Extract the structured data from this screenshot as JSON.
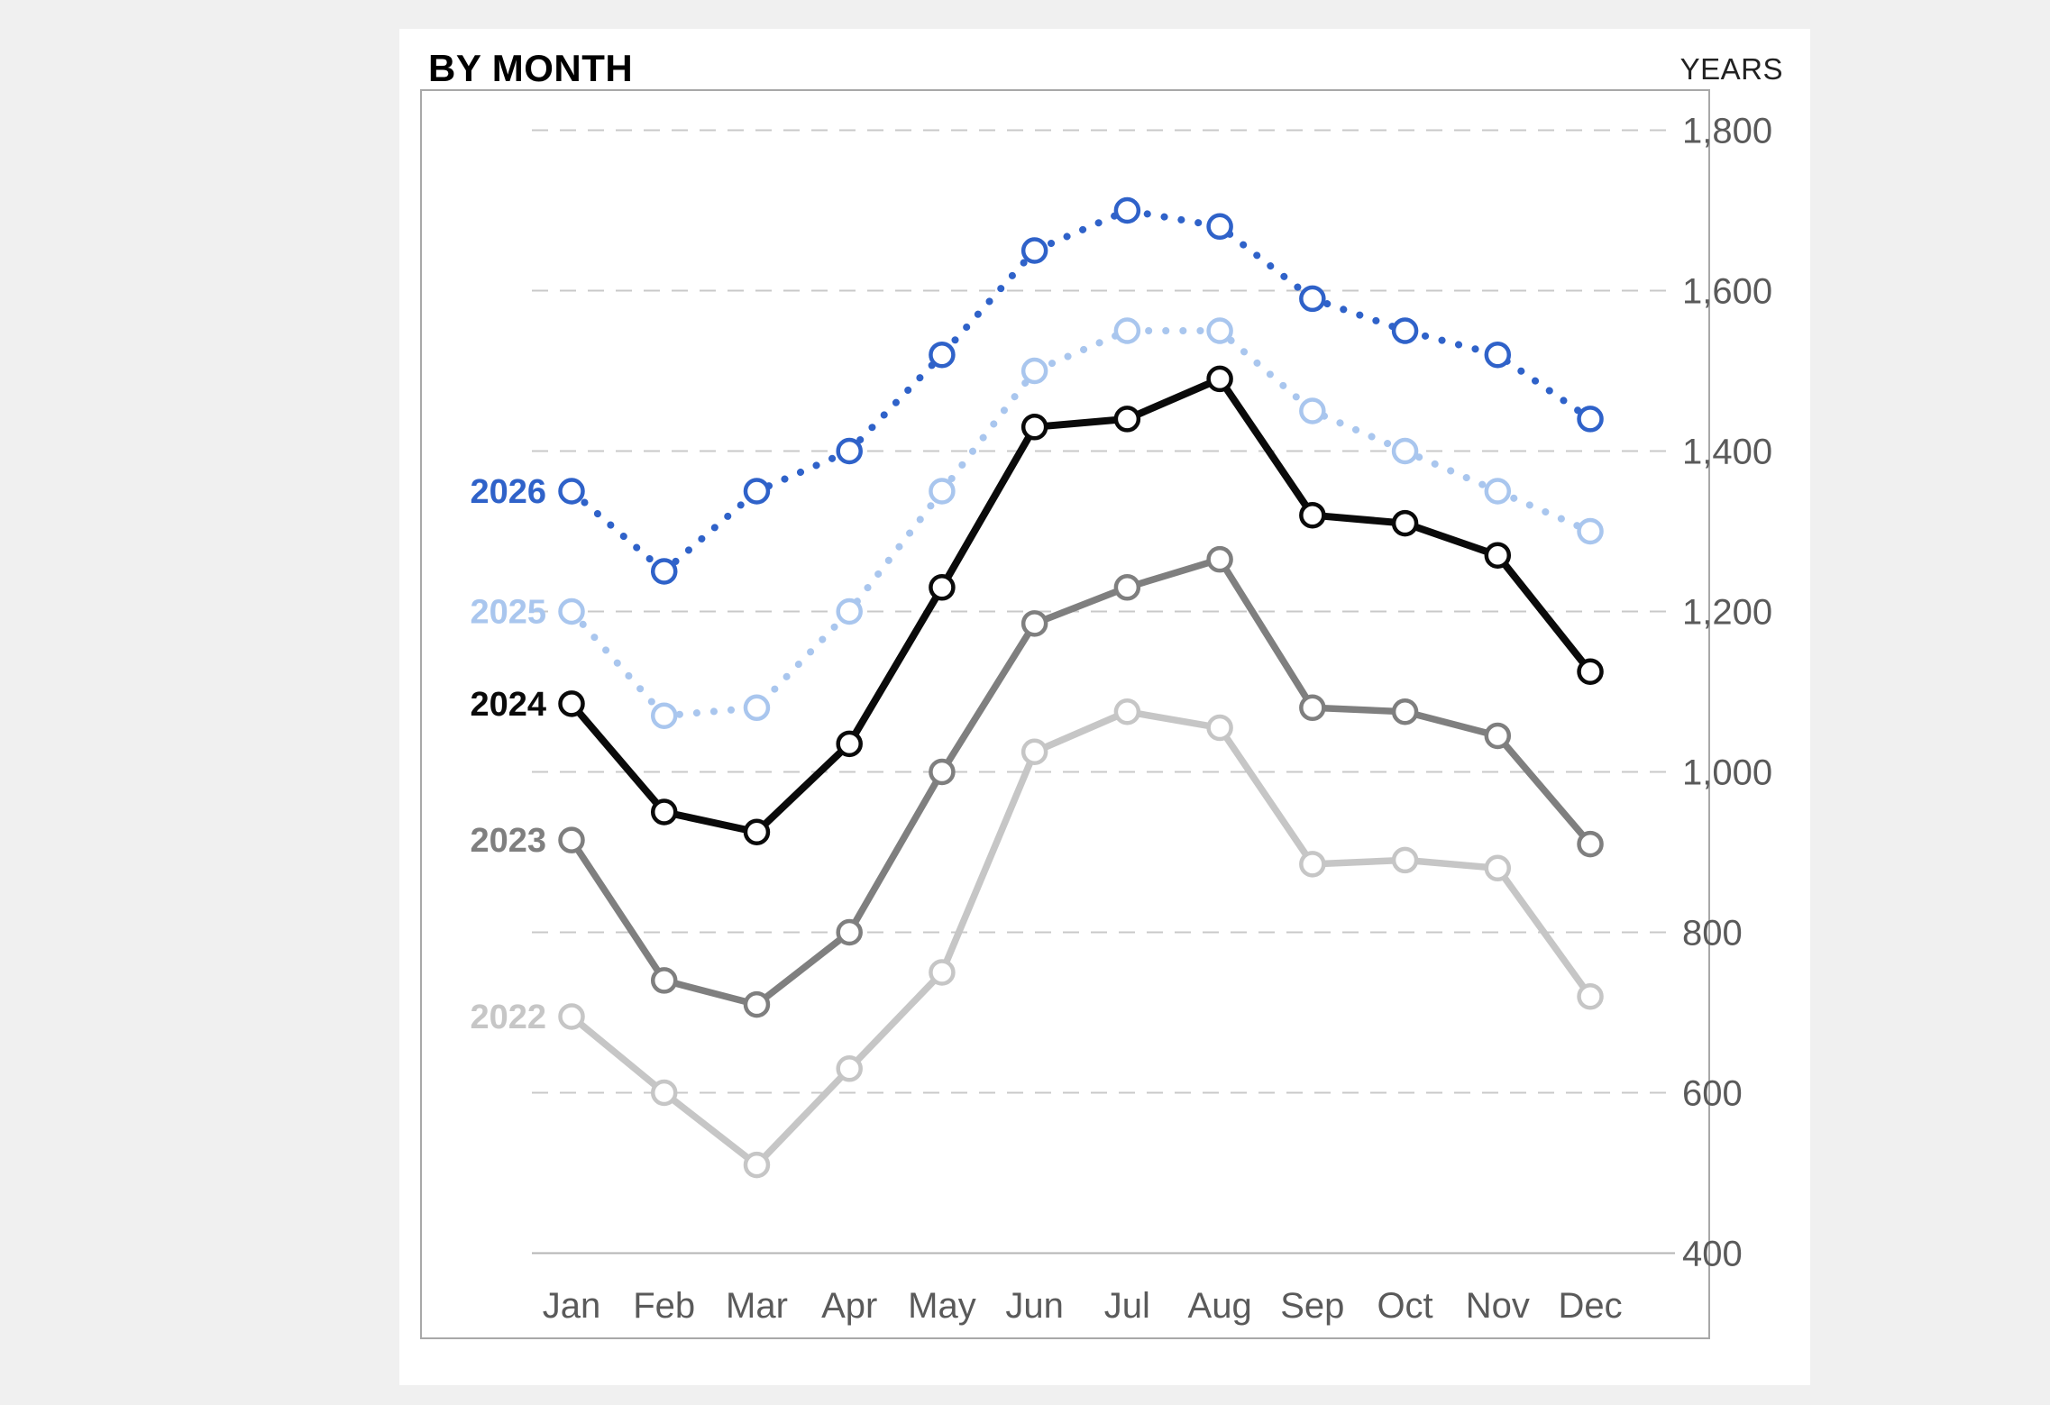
{
  "page": {
    "background": "#f0f0f0",
    "card_background": "#ffffff"
  },
  "header": {
    "title": "BY MONTH",
    "axis_unit_label": "YEARS"
  },
  "chart_data": {
    "type": "line",
    "title": "BY MONTH",
    "legend_position": "inline-left-of-first-point",
    "x_categories": [
      "Jan",
      "Feb",
      "Mar",
      "Apr",
      "May",
      "Jun",
      "Jul",
      "Aug",
      "Sep",
      "Oct",
      "Nov",
      "Dec"
    ],
    "y_axis": {
      "min": 400,
      "max": 1800,
      "step": 200,
      "side": "right",
      "tick_labels": [
        "400",
        "600",
        "800",
        "1,000",
        "1,200",
        "1,400",
        "1,600",
        "1,800"
      ]
    },
    "grid": {
      "horizontal": true,
      "style": "dashed",
      "color": "#c9c9c9"
    },
    "axis_colors": {
      "tick_text": "#5a5a5a",
      "baseline": "#b5b5b5",
      "plot_border": "#a8a8a8"
    },
    "series": [
      {
        "name": "2026",
        "color": "#2f62c9",
        "line_style": "dotted",
        "values": [
          1350,
          1250,
          1350,
          1400,
          1520,
          1650,
          1700,
          1680,
          1590,
          1550,
          1520,
          1440
        ]
      },
      {
        "name": "2025",
        "color": "#a9c6ee",
        "line_style": "dotted",
        "values": [
          1200,
          1070,
          1080,
          1200,
          1350,
          1500,
          1550,
          1550,
          1450,
          1400,
          1350,
          1300
        ]
      },
      {
        "name": "2024",
        "color": "#0a0a0a",
        "line_style": "solid",
        "values": [
          1085,
          950,
          925,
          1035,
          1230,
          1430,
          1440,
          1490,
          1320,
          1310,
          1270,
          1125
        ]
      },
      {
        "name": "2023",
        "color": "#7f7f7f",
        "line_style": "solid",
        "values": [
          915,
          740,
          710,
          800,
          1000,
          1185,
          1230,
          1265,
          1080,
          1075,
          1045,
          910
        ]
      },
      {
        "name": "2022",
        "color": "#c6c6c6",
        "line_style": "solid",
        "values": [
          695,
          600,
          510,
          630,
          750,
          1025,
          1075,
          1055,
          885,
          890,
          880,
          720
        ]
      }
    ]
  }
}
